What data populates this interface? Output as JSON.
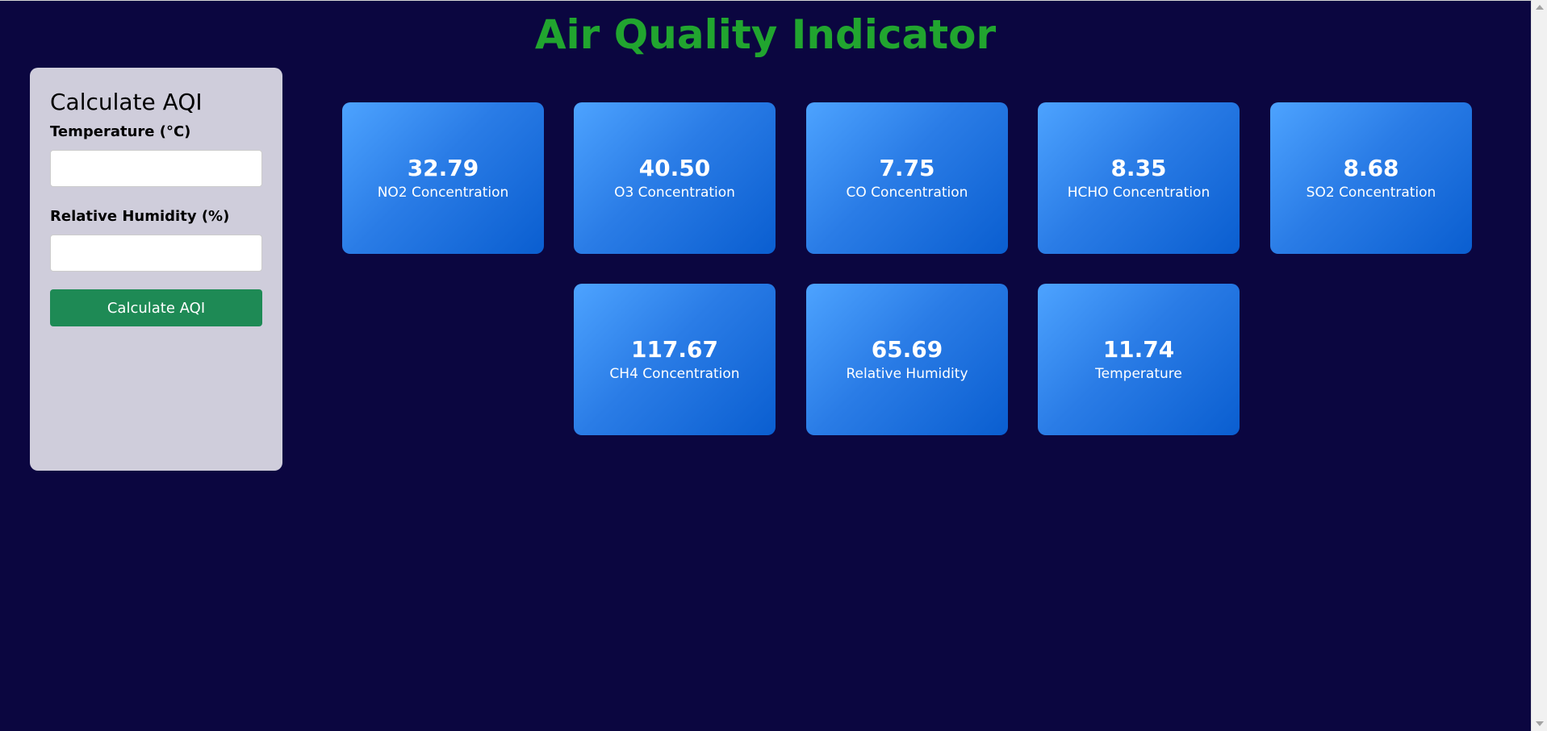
{
  "page": {
    "title": "Air Quality Indicator"
  },
  "form": {
    "title": "Calculate AQI",
    "temperature_label": "Temperature (°C)",
    "temperature_value": "",
    "humidity_label": "Relative Humidity (%)",
    "humidity_value": "",
    "button_label": "Calculate AQI"
  },
  "cards": [
    {
      "value": "32.79",
      "label": "NO2 Concentration"
    },
    {
      "value": "40.50",
      "label": "O3 Concentration"
    },
    {
      "value": "7.75",
      "label": "CO Concentration"
    },
    {
      "value": "8.35",
      "label": "HCHO Concentration"
    },
    {
      "value": "8.68",
      "label": "SO2 Concentration"
    },
    {
      "value": "117.67",
      "label": "CH4 Concentration"
    },
    {
      "value": "65.69",
      "label": "Relative Humidity"
    },
    {
      "value": "11.74",
      "label": "Temperature"
    }
  ],
  "colors": {
    "background": "#0b0640",
    "title": "#21a52f",
    "panel": "#cfcddb",
    "button": "#1e8a55",
    "card_light": "#4da3ff",
    "card_dark": "#0a5ed0"
  }
}
